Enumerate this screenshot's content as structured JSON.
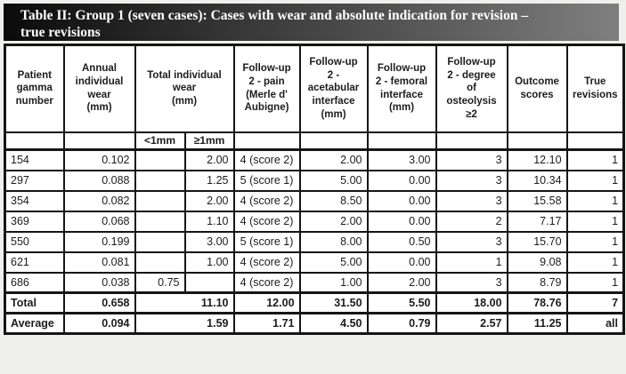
{
  "title": {
    "line1": "Table II: Group 1 (seven cases): Cases with wear and absolute indication for revision –",
    "line2": "true revisions"
  },
  "colors": {
    "title_bar_left": "#0b0b0b",
    "title_bar_right": "#7f7f7f",
    "title_text": "#ffffff",
    "table_border": "#151515",
    "cell_text": "#1c1c1c",
    "page_background": "#efefee"
  },
  "table": {
    "header": {
      "patient": "Patient\ngamma\nnumber",
      "annual": "Annual\nindividual\nwear\n(mm)",
      "total_wear": "Total individual\nwear\n(mm)",
      "sub_lt": "<1mm",
      "sub_ge": "≥1mm",
      "pain": "Follow-up\n2 - pain\n(Merle d'\nAubigne)",
      "acetabular": "Follow-up\n2 -\nacetabular\ninterface\n(mm)",
      "femoral": "Follow-up\n2 - femoral\ninterface\n(mm)",
      "osteolysis": "Follow-up\n2 - degree\nof\nosteolysis\n≥2",
      "outcome": "Outcome\nscores",
      "revisions": "True\nrevisions"
    },
    "rows": [
      [
        "154",
        "0.102",
        "",
        "2.00",
        "4 (score 2)",
        "2.00",
        "3.00",
        "3",
        "12.10",
        "1"
      ],
      [
        "297",
        "0.088",
        "",
        "1.25",
        "5 (score 1)",
        "5.00",
        "0.00",
        "3",
        "10.34",
        "1"
      ],
      [
        "354",
        "0.082",
        "",
        "2.00",
        "4 (score 2)",
        "8.50",
        "0.00",
        "3",
        "15.58",
        "1"
      ],
      [
        "369",
        "0.068",
        "",
        "1.10",
        "4 (score 2)",
        "2.00",
        "0.00",
        "2",
        "7.17",
        "1"
      ],
      [
        "550",
        "0.199",
        "",
        "3.00",
        "5 (score 1)",
        "8.00",
        "0.50",
        "3",
        "15.70",
        "1"
      ],
      [
        "621",
        "0.081",
        "",
        "1.00",
        "4 (score 2)",
        "5.00",
        "0.00",
        "1",
        "9.08",
        "1"
      ],
      [
        "686",
        "0.038",
        "0.75",
        "",
        "4 (score 2)",
        "1.00",
        "2.00",
        "3",
        "8.79",
        "1"
      ]
    ],
    "total": [
      "Total",
      "0.658",
      "11.10",
      "12.00",
      "31.50",
      "5.50",
      "18.00",
      "78.76",
      "7"
    ],
    "average": [
      "Average",
      "0.094",
      "1.59",
      "1.71",
      "4.50",
      "0.79",
      "2.57",
      "11.25",
      "all"
    ]
  }
}
